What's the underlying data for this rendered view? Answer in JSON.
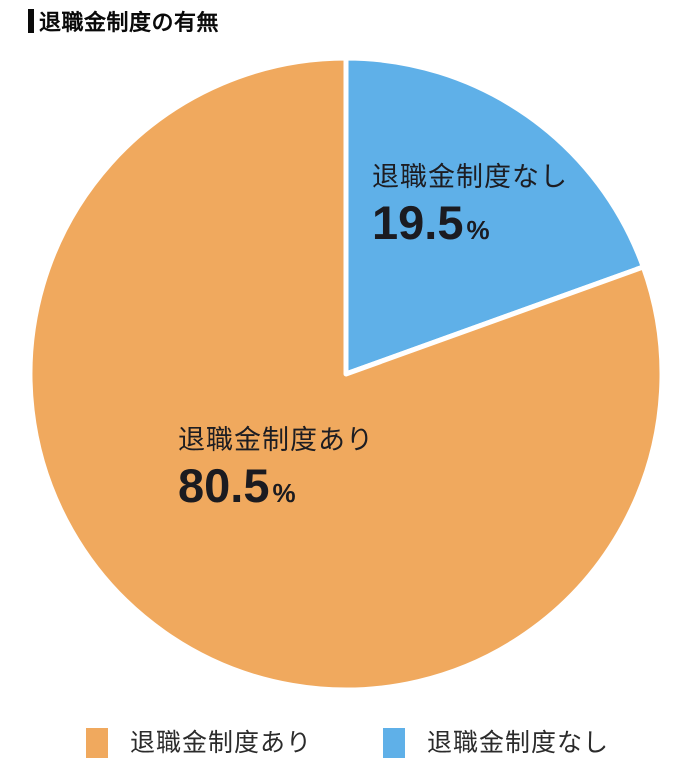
{
  "chart_data": {
    "type": "pie",
    "title": "退職金制度の有無",
    "unit": "%",
    "start_at_deg": 0,
    "clockwise": true,
    "separator_color": "#ffffff",
    "slices": [
      {
        "label": "退職金制度なし",
        "value": 19.5,
        "color": "#5FB0E8"
      },
      {
        "label": "退職金制度あり",
        "value": 80.5,
        "color": "#F0A95E"
      }
    ],
    "legend_position": "bottom",
    "legend": [
      {
        "label": "退職金制度あり",
        "color": "#F0A95E"
      },
      {
        "label": "退職金制度なし",
        "color": "#5FB0E8"
      }
    ]
  },
  "header": {
    "title_color": "#0a0a0a"
  }
}
